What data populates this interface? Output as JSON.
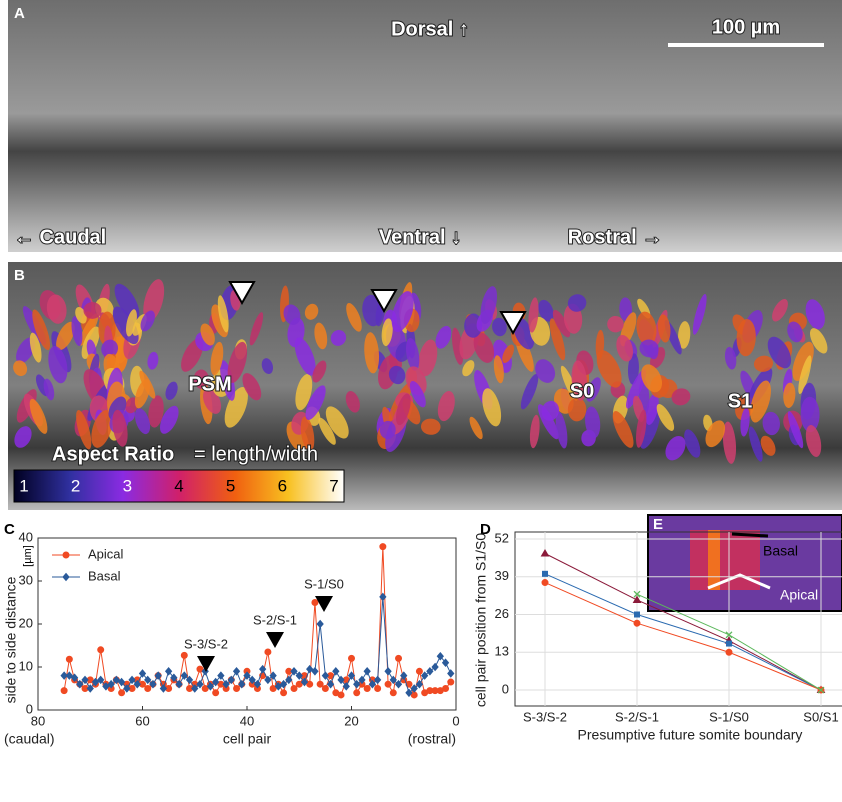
{
  "panel_a": {
    "label": "A",
    "dorsal": "Dorsal ↑",
    "scale_bar": "100 µm",
    "caudal": "← Caudal",
    "ventral": "Ventral ↓",
    "rostral": "Rostral →"
  },
  "panel_b": {
    "label": "B",
    "psm": "PSM",
    "s0": "S0",
    "s1": "S1",
    "colorbar_title": "Aspect Ratio",
    "colorbar_formula": "= length/width",
    "colorbar_ticks": [
      "1",
      "2",
      "3",
      "4",
      "5",
      "6",
      "7"
    ]
  },
  "panel_e": {
    "label": "E",
    "basal": "Basal",
    "apical": "Apical"
  },
  "chart_data": [
    {
      "type": "line",
      "panel": "C",
      "ylabel": "side to side distance",
      "yunit": "[µm]",
      "xlabel": "cell pair",
      "xlabel_left": "(caudal)",
      "xlabel_right": "(rostral)",
      "annotations": [
        "S-3/S-2",
        "S-2/S-1",
        "S-1/S0"
      ],
      "xlim": [
        80,
        0
      ],
      "xticks": [
        80,
        60,
        40,
        20,
        0
      ],
      "ylim": [
        0,
        40
      ],
      "yticks": [
        0,
        10,
        20,
        30,
        40
      ],
      "legend": "upper left",
      "x": [
        75,
        74,
        73,
        72,
        71,
        70,
        69,
        68,
        67,
        66,
        65,
        64,
        63,
        62,
        61,
        60,
        59,
        58,
        57,
        56,
        55,
        54,
        53,
        52,
        51,
        50,
        49,
        48,
        47,
        46,
        45,
        44,
        43,
        42,
        41,
        40,
        39,
        38,
        37,
        36,
        35,
        34,
        33,
        32,
        31,
        30,
        29,
        28,
        27,
        26,
        25,
        24,
        23,
        22,
        21,
        20,
        19,
        18,
        17,
        16,
        15,
        14,
        13,
        12,
        11,
        10,
        9,
        8,
        7,
        6,
        5,
        4,
        3,
        2,
        1
      ],
      "series": [
        {
          "name": "Apical",
          "color": "#f04a23",
          "marker": "circle",
          "values": [
            4.5,
            11.8,
            7,
            6,
            5,
            7,
            6,
            14,
            6,
            5,
            7,
            4,
            6,
            5,
            7,
            6,
            5,
            6,
            8,
            6,
            5,
            7,
            6,
            12.7,
            5,
            6,
            9.5,
            5,
            6,
            4,
            6,
            5,
            7,
            5,
            6,
            9,
            6,
            5,
            8,
            13.5,
            5,
            6,
            4,
            9,
            5,
            6,
            8,
            6,
            25,
            6,
            5,
            8,
            4,
            3.5,
            7,
            12,
            4,
            6,
            5,
            7,
            5,
            38,
            6,
            4,
            12,
            7,
            6,
            3.5,
            9,
            4,
            4.5,
            4.5,
            4.5,
            5,
            6.5
          ]
        },
        {
          "name": "Basal",
          "color": "#2a5a9a",
          "marker": "diamond",
          "values": [
            8,
            8,
            7.5,
            6,
            7,
            5,
            6.5,
            7,
            5.5,
            6,
            7,
            6.5,
            5,
            7,
            6,
            8.5,
            7,
            6,
            8,
            5,
            9,
            7.5,
            6,
            8,
            7,
            5,
            6,
            9,
            5.5,
            6.5,
            8,
            6,
            7,
            9,
            6,
            8,
            7,
            6,
            9.5,
            7,
            8,
            5.5,
            6,
            7,
            9,
            8,
            6.5,
            9.5,
            9,
            20,
            8,
            6,
            9,
            7,
            5.5,
            8,
            6,
            7,
            9,
            6,
            7,
            26.3,
            9,
            7,
            6,
            8,
            4,
            5,
            6,
            8,
            9,
            10,
            12.5,
            11,
            8.5
          ]
        }
      ]
    },
    {
      "type": "line",
      "panel": "D",
      "ylabel": "cell pair position from S1/S0",
      "xlabel": "Presumptive future somite boundary",
      "categories": [
        "S-3/S-2",
        "S-2/S-1",
        "S-1/S0",
        "S0/S1"
      ],
      "ylim": [
        -5.5,
        54.4
      ],
      "yticks": [
        0,
        13,
        26,
        39,
        52
      ],
      "grid": true,
      "series": [
        {
          "color": "#8b1a3a",
          "marker": "triangle",
          "values": [
            47,
            31,
            17,
            0
          ]
        },
        {
          "color": "#2a6ab0",
          "marker": "square",
          "values": [
            40,
            26,
            16,
            0
          ]
        },
        {
          "color": "#f04a23",
          "marker": "circle",
          "values": [
            37,
            23,
            13,
            0
          ]
        },
        {
          "color": "#5cb85c",
          "marker": "x",
          "values": [
            null,
            33,
            19,
            0
          ]
        }
      ]
    }
  ]
}
